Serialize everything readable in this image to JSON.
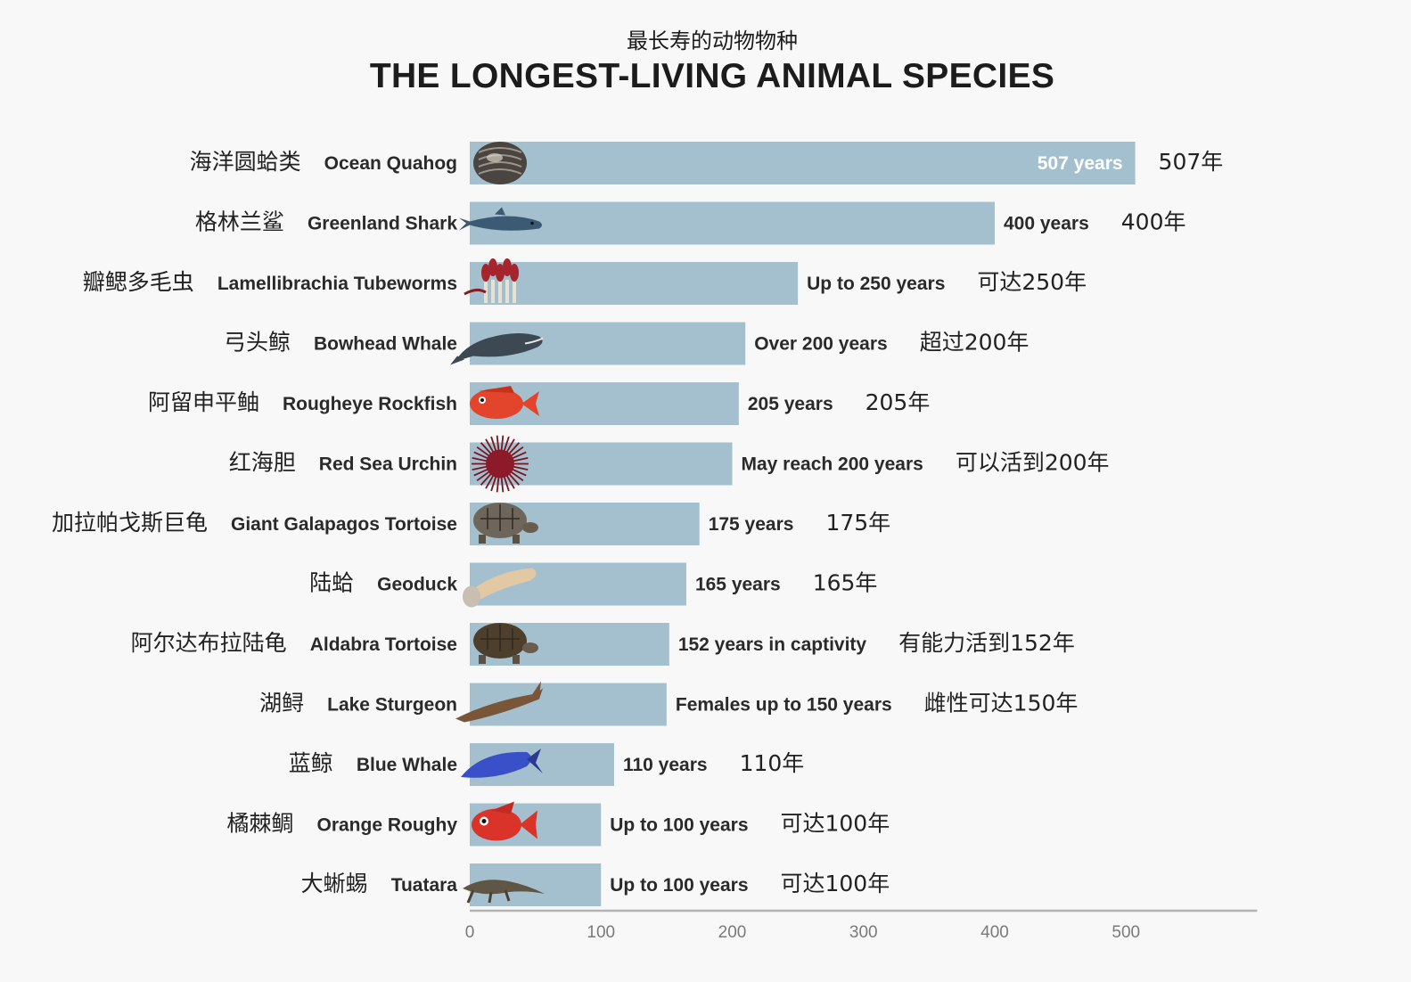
{
  "header": {
    "subtitle": "最长寿的动物物种",
    "title": "THE LONGEST-LIVING ANIMAL SPECIES"
  },
  "colors": {
    "bar": "#a4c0ce",
    "axis": "#b3b3b3",
    "text": "#2a2a2a",
    "background": "#f8f8f8"
  },
  "chart_data": {
    "type": "bar",
    "orientation": "horizontal",
    "title": "THE LONGEST-LIVING ANIMAL SPECIES",
    "subtitle": "最长寿的动物物种",
    "xlim": [
      0,
      600
    ],
    "xticks": [
      0,
      100,
      200,
      300,
      400,
      500
    ],
    "grid": false,
    "categories": [
      {
        "name_en": "Ocean Quahog",
        "name_zh": "海洋圆蛤类",
        "value": 507,
        "label_en": "507 years",
        "label_zh": "507年",
        "label_inside": true,
        "icon": "clam-icon"
      },
      {
        "name_en": "Greenland Shark",
        "name_zh": "格林兰鲨",
        "value": 400,
        "label_en": "400 years",
        "label_zh": "400年",
        "label_inside": false,
        "icon": "shark-icon"
      },
      {
        "name_en": "Lamellibrachia Tubeworms",
        "name_zh": "瓣鳃多毛虫",
        "value": 250,
        "label_en": "Up to 250 years",
        "label_zh": "可达250年",
        "label_inside": false,
        "icon": "tubeworm-icon"
      },
      {
        "name_en": "Bowhead Whale",
        "name_zh": "弓头鲸",
        "value": 210,
        "label_en": "Over 200 years",
        "label_zh": "超过200年",
        "label_inside": false,
        "icon": "bowhead-whale-icon"
      },
      {
        "name_en": "Rougheye Rockfish",
        "name_zh": "阿留申平鲉",
        "value": 205,
        "label_en": "205 years",
        "label_zh": "205年",
        "label_inside": false,
        "icon": "rockfish-icon"
      },
      {
        "name_en": "Red Sea Urchin",
        "name_zh": "红海胆",
        "value": 200,
        "label_en": "May reach 200 years",
        "label_zh": "可以活到200年",
        "label_inside": false,
        "icon": "sea-urchin-icon"
      },
      {
        "name_en": "Giant Galapagos Tortoise",
        "name_zh": "加拉帕戈斯巨龟",
        "value": 175,
        "label_en": "175 years",
        "label_zh": "175年",
        "label_inside": false,
        "icon": "tortoise-icon"
      },
      {
        "name_en": "Geoduck",
        "name_zh": "陆蛤",
        "value": 165,
        "label_en": "165 years",
        "label_zh": "165年",
        "label_inside": false,
        "icon": "geoduck-icon"
      },
      {
        "name_en": "Aldabra Tortoise",
        "name_zh": "阿尔达布拉陆龟",
        "value": 152,
        "label_en": "152 years in captivity",
        "label_zh": "有能力活到152年",
        "label_inside": false,
        "icon": "aldabra-tortoise-icon"
      },
      {
        "name_en": "Lake Sturgeon",
        "name_zh": "湖鲟",
        "value": 150,
        "label_en": "Females up to 150 years",
        "label_zh": "雌性可达150年",
        "label_inside": false,
        "icon": "sturgeon-icon"
      },
      {
        "name_en": "Blue Whale",
        "name_zh": "蓝鲸",
        "value": 110,
        "label_en": "110 years",
        "label_zh": "110年",
        "label_inside": false,
        "icon": "blue-whale-icon"
      },
      {
        "name_en": "Orange Roughy",
        "name_zh": "橘棘鲷",
        "value": 100,
        "label_en": "Up to 100 years",
        "label_zh": "可达100年",
        "label_inside": false,
        "icon": "orange-roughy-icon"
      },
      {
        "name_en": "Tuatara",
        "name_zh": "大蜥蜴",
        "value": 100,
        "label_en": "Up to 100 years",
        "label_zh": "可达100年",
        "label_inside": false,
        "icon": "tuatara-icon"
      }
    ]
  }
}
